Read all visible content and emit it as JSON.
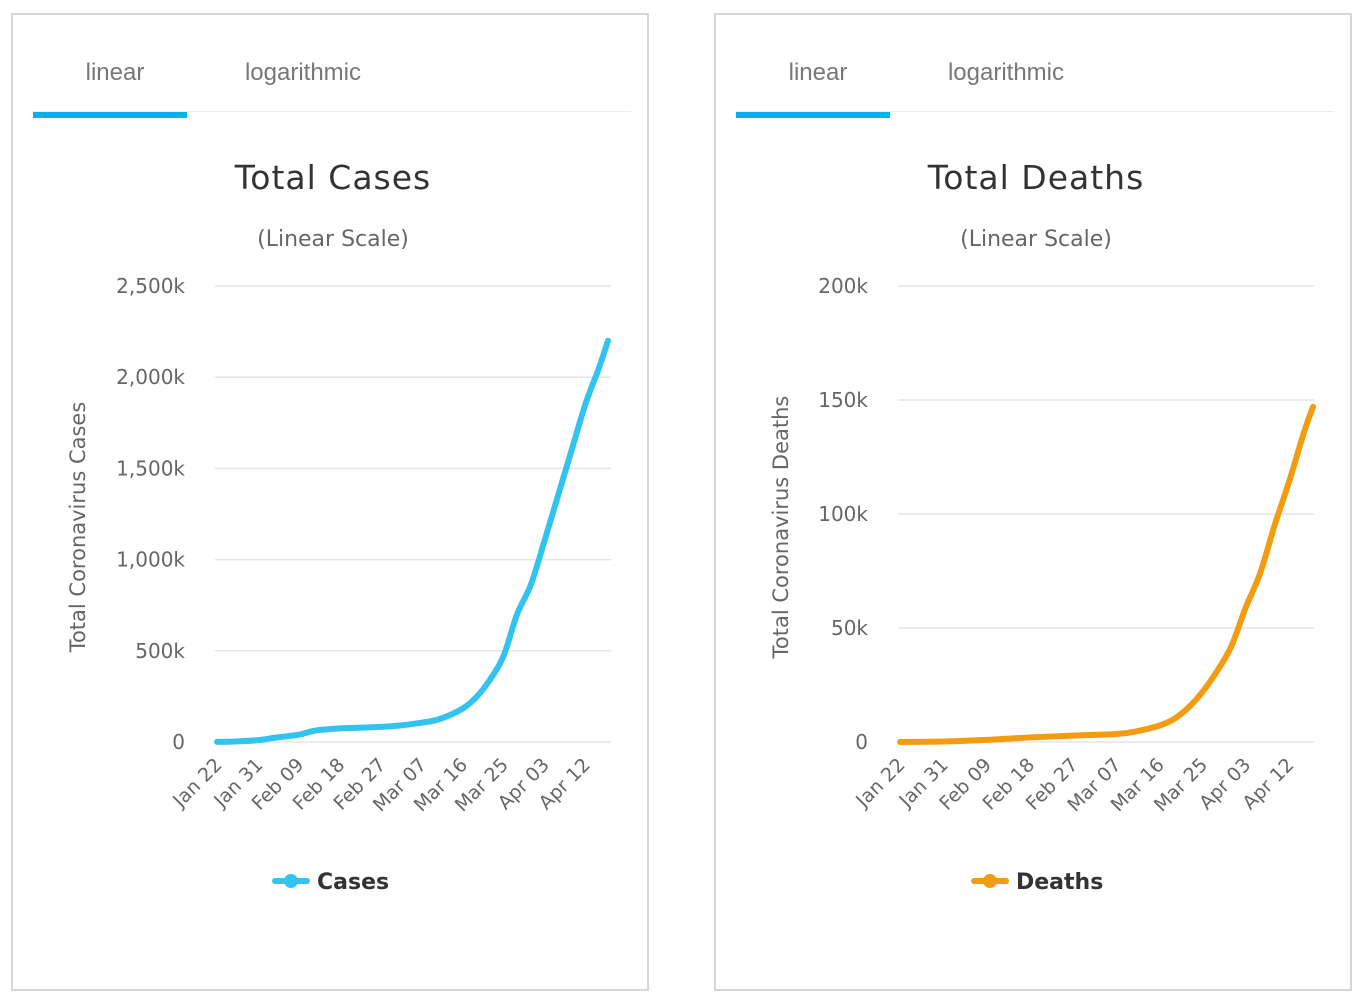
{
  "charts": [
    {
      "tabs": [
        {
          "label": "linear",
          "active": true
        },
        {
          "label": "logarithmic",
          "active": false
        }
      ],
      "accent": "#00b3e6"
    },
    {
      "tabs": [
        {
          "label": "linear",
          "active": true
        },
        {
          "label": "logarithmic",
          "active": false
        }
      ],
      "accent": "#00b3e6"
    }
  ],
  "chart_data": [
    {
      "type": "line",
      "title": "Total Cases",
      "subtitle": "(Linear Scale)",
      "ylabel": "Total Coronavirus Cases",
      "xlabel": "",
      "ylim": [
        0,
        2500000
      ],
      "yticks": [
        0,
        500000,
        1000000,
        1500000,
        2000000,
        2500000
      ],
      "ytick_labels": [
        "0",
        "500k",
        "1,000k",
        "1,500k",
        "2,000k",
        "2,500k"
      ],
      "x_tick_labels": [
        "Jan 22",
        "Jan 31",
        "Feb 09",
        "Feb 18",
        "Feb 27",
        "Mar 07",
        "Mar 16",
        "Mar 25",
        "Apr 03",
        "Apr 12"
      ],
      "x_tick_index": [
        0,
        9,
        18,
        27,
        36,
        45,
        54,
        63,
        72,
        81
      ],
      "grid": true,
      "legend_position": "bottom",
      "series": [
        {
          "name": "Cases",
          "color": "#33c3f0",
          "x": [
            "Jan 22",
            "Jan 26",
            "Jan 31",
            "Feb 04",
            "Feb 09",
            "Feb 12",
            "Feb 14",
            "Feb 18",
            "Feb 23",
            "Feb 27",
            "Mar 02",
            "Mar 07",
            "Mar 11",
            "Mar 16",
            "Mar 19",
            "Mar 22",
            "Mar 25",
            "Mar 28",
            "Mar 31",
            "Apr 03",
            "Apr 06",
            "Apr 09",
            "Apr 12",
            "Apr 15",
            "Apr 17"
          ],
          "values": [
            580,
            2800,
            9900,
            24500,
            40000,
            60000,
            67000,
            75000,
            79000,
            83000,
            90000,
            106000,
            126000,
            183000,
            245000,
            340000,
            470000,
            700000,
            860000,
            1100000,
            1350000,
            1600000,
            1850000,
            2050000,
            2200000
          ]
        }
      ]
    },
    {
      "type": "line",
      "title": "Total Deaths",
      "subtitle": "(Linear Scale)",
      "ylabel": "Total Coronavirus Deaths",
      "xlabel": "",
      "ylim": [
        0,
        200000
      ],
      "yticks": [
        0,
        50000,
        100000,
        150000,
        200000
      ],
      "ytick_labels": [
        "0",
        "50k",
        "100k",
        "150k",
        "200k"
      ],
      "x_tick_labels": [
        "Jan 22",
        "Jan 31",
        "Feb 09",
        "Feb 18",
        "Feb 27",
        "Mar 07",
        "Mar 16",
        "Mar 25",
        "Apr 03",
        "Apr 12"
      ],
      "x_tick_index": [
        0,
        9,
        18,
        27,
        36,
        45,
        54,
        63,
        72,
        81
      ],
      "grid": true,
      "legend_position": "bottom",
      "series": [
        {
          "name": "Deaths",
          "color": "#f39c12",
          "x": [
            "Jan 22",
            "Jan 31",
            "Feb 09",
            "Feb 18",
            "Feb 27",
            "Mar 07",
            "Mar 11",
            "Mar 16",
            "Mar 19",
            "Mar 22",
            "Mar 25",
            "Mar 28",
            "Mar 31",
            "Apr 03",
            "Apr 06",
            "Apr 09",
            "Apr 12",
            "Apr 15",
            "Apr 17"
          ],
          "values": [
            17,
            213,
            908,
            2000,
            2800,
            3500,
            4600,
            7200,
            10000,
            15000,
            22000,
            31000,
            42000,
            59000,
            74000,
            95000,
            114000,
            135000,
            147000
          ]
        }
      ]
    }
  ]
}
